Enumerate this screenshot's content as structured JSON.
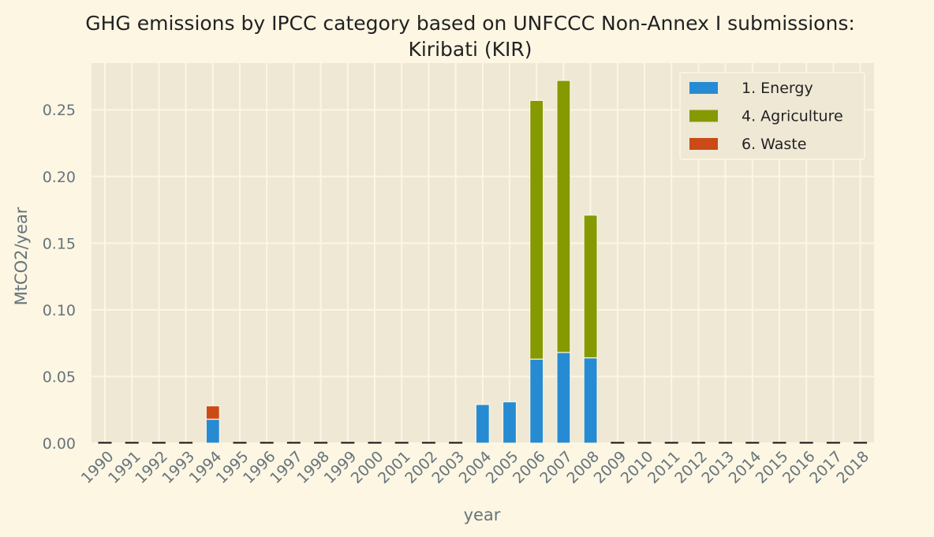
{
  "chart_data": {
    "type": "bar",
    "stacked": true,
    "title": "GHG emissions by IPCC category based on UNFCCC Non-Annex I submissions:",
    "subtitle": "Kiribati (KIR)",
    "xlabel": "year",
    "ylabel": "MtCO2/year",
    "ylim": [
      0,
      0.285
    ],
    "yticks": [
      "0.00",
      "0.05",
      "0.10",
      "0.15",
      "0.20",
      "0.25"
    ],
    "grid": true,
    "legend_position": "top-right",
    "background": "#eee8d5",
    "page_background": "#fdf6e3",
    "categories": [
      "1990",
      "1991",
      "1992",
      "1993",
      "1994",
      "1995",
      "1996",
      "1997",
      "1998",
      "1999",
      "2000",
      "2001",
      "2002",
      "2003",
      "2004",
      "2005",
      "2006",
      "2007",
      "2008",
      "2009",
      "2010",
      "2011",
      "2012",
      "2013",
      "2014",
      "2015",
      "2016",
      "2017",
      "2018"
    ],
    "series": [
      {
        "name": "1. Energy",
        "color": "#268bd2",
        "values": [
          0,
          0,
          0,
          0,
          0.018,
          0,
          0,
          0,
          0,
          0,
          0,
          0,
          0,
          0,
          0.029,
          0.031,
          0.063,
          0.068,
          0.064,
          0,
          0,
          0,
          0,
          0,
          0,
          0,
          0,
          0,
          0
        ]
      },
      {
        "name": "4. Agriculture",
        "color": "#859900",
        "values": [
          0,
          0,
          0,
          0,
          0,
          0,
          0,
          0,
          0,
          0,
          0,
          0,
          0,
          0,
          0,
          0,
          0.194,
          0.204,
          0.107,
          0,
          0,
          0,
          0,
          0,
          0,
          0,
          0,
          0,
          0
        ]
      },
      {
        "name": "6. Waste",
        "color": "#cb4b16",
        "values": [
          0,
          0,
          0,
          0,
          0.01,
          0,
          0,
          0,
          0,
          0,
          0,
          0,
          0,
          0,
          0,
          0,
          0,
          0,
          0,
          0,
          0,
          0,
          0,
          0,
          0,
          0,
          0,
          0,
          0
        ]
      }
    ]
  }
}
